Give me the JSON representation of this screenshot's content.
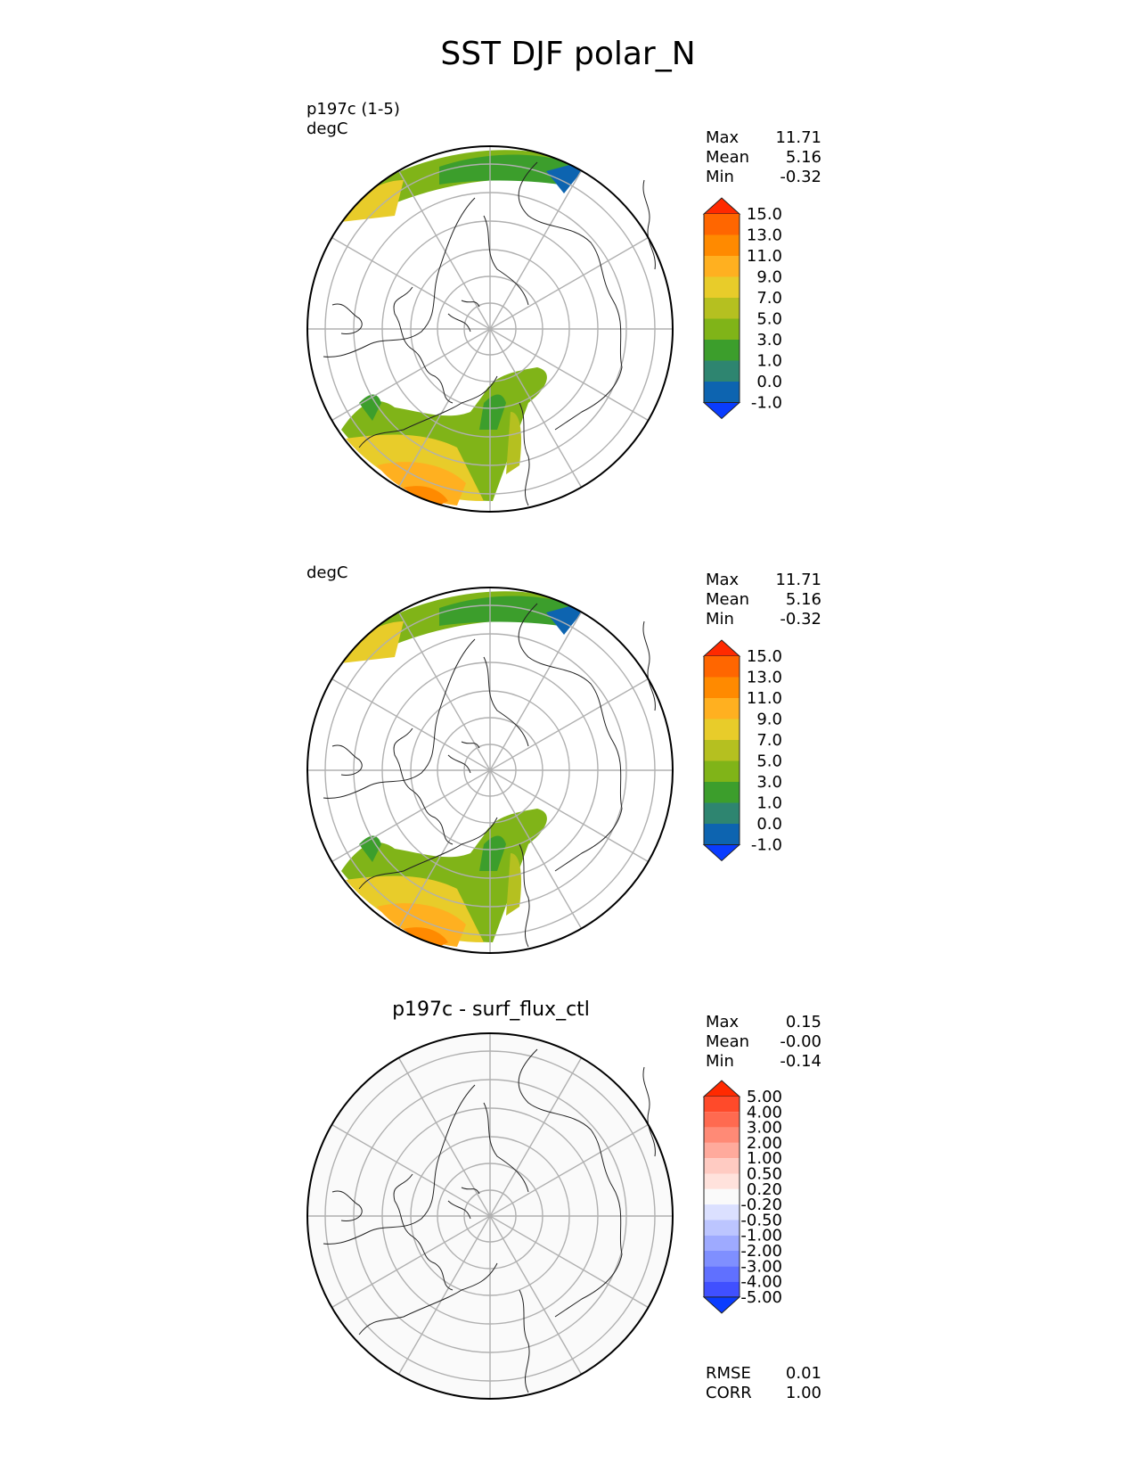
{
  "title": "SST DJF polar_N",
  "panels": [
    {
      "subtitle_line1": "p197c (1-5)",
      "subtitle_line2": "degC",
      "title": "",
      "stats": [
        {
          "label": "Max",
          "value": "11.71"
        },
        {
          "label": "Mean",
          "value": "5.16"
        },
        {
          "label": "Min",
          "value": "-0.32"
        }
      ]
    },
    {
      "subtitle_line1": "degC",
      "title": "",
      "stats": [
        {
          "label": "Max",
          "value": "11.71"
        },
        {
          "label": "Mean",
          "value": "5.16"
        },
        {
          "label": "Min",
          "value": "-0.32"
        }
      ]
    },
    {
      "title": "p197c - surf_flux_ctl",
      "stats": [
        {
          "label": "Max",
          "value": "0.15"
        },
        {
          "label": "Mean",
          "value": "-0.00"
        },
        {
          "label": "Min",
          "value": "-0.14"
        }
      ],
      "metrics": [
        {
          "label": "RMSE",
          "value": "0.01"
        },
        {
          "label": "CORR",
          "value": "1.00"
        }
      ]
    }
  ],
  "colorbars": {
    "sst": {
      "labels": [
        "15.0",
        "13.0",
        "11.0",
        "9.0",
        "7.0",
        "5.0",
        "3.0",
        "1.0",
        "0.0",
        "-1.0"
      ],
      "colors": [
        "#ff2a00",
        "#ff6600",
        "#ff8a00",
        "#ffb020",
        "#e8cc2a",
        "#b5c020",
        "#80b418",
        "#3c9e2c",
        "#2e8570",
        "#0d64b0",
        "#0a3cff"
      ]
    },
    "diff": {
      "labels": [
        "5.00",
        "4.00",
        "3.00",
        "2.00",
        "1.00",
        "0.50",
        "0.20",
        "-0.20",
        "-0.50",
        "-1.00",
        "-2.00",
        "-3.00",
        "-4.00",
        "-5.00"
      ],
      "colors": [
        "#ff2a00",
        "#ff4a2a",
        "#ff6a50",
        "#ff8a76",
        "#ffaa9c",
        "#ffcbc2",
        "#ffe2dc",
        "#fafafa",
        "#dbe0ff",
        "#bcc5ff",
        "#9eaaff",
        "#7f8fff",
        "#6070ff",
        "#4050ff",
        "#0a3cff"
      ]
    }
  }
}
